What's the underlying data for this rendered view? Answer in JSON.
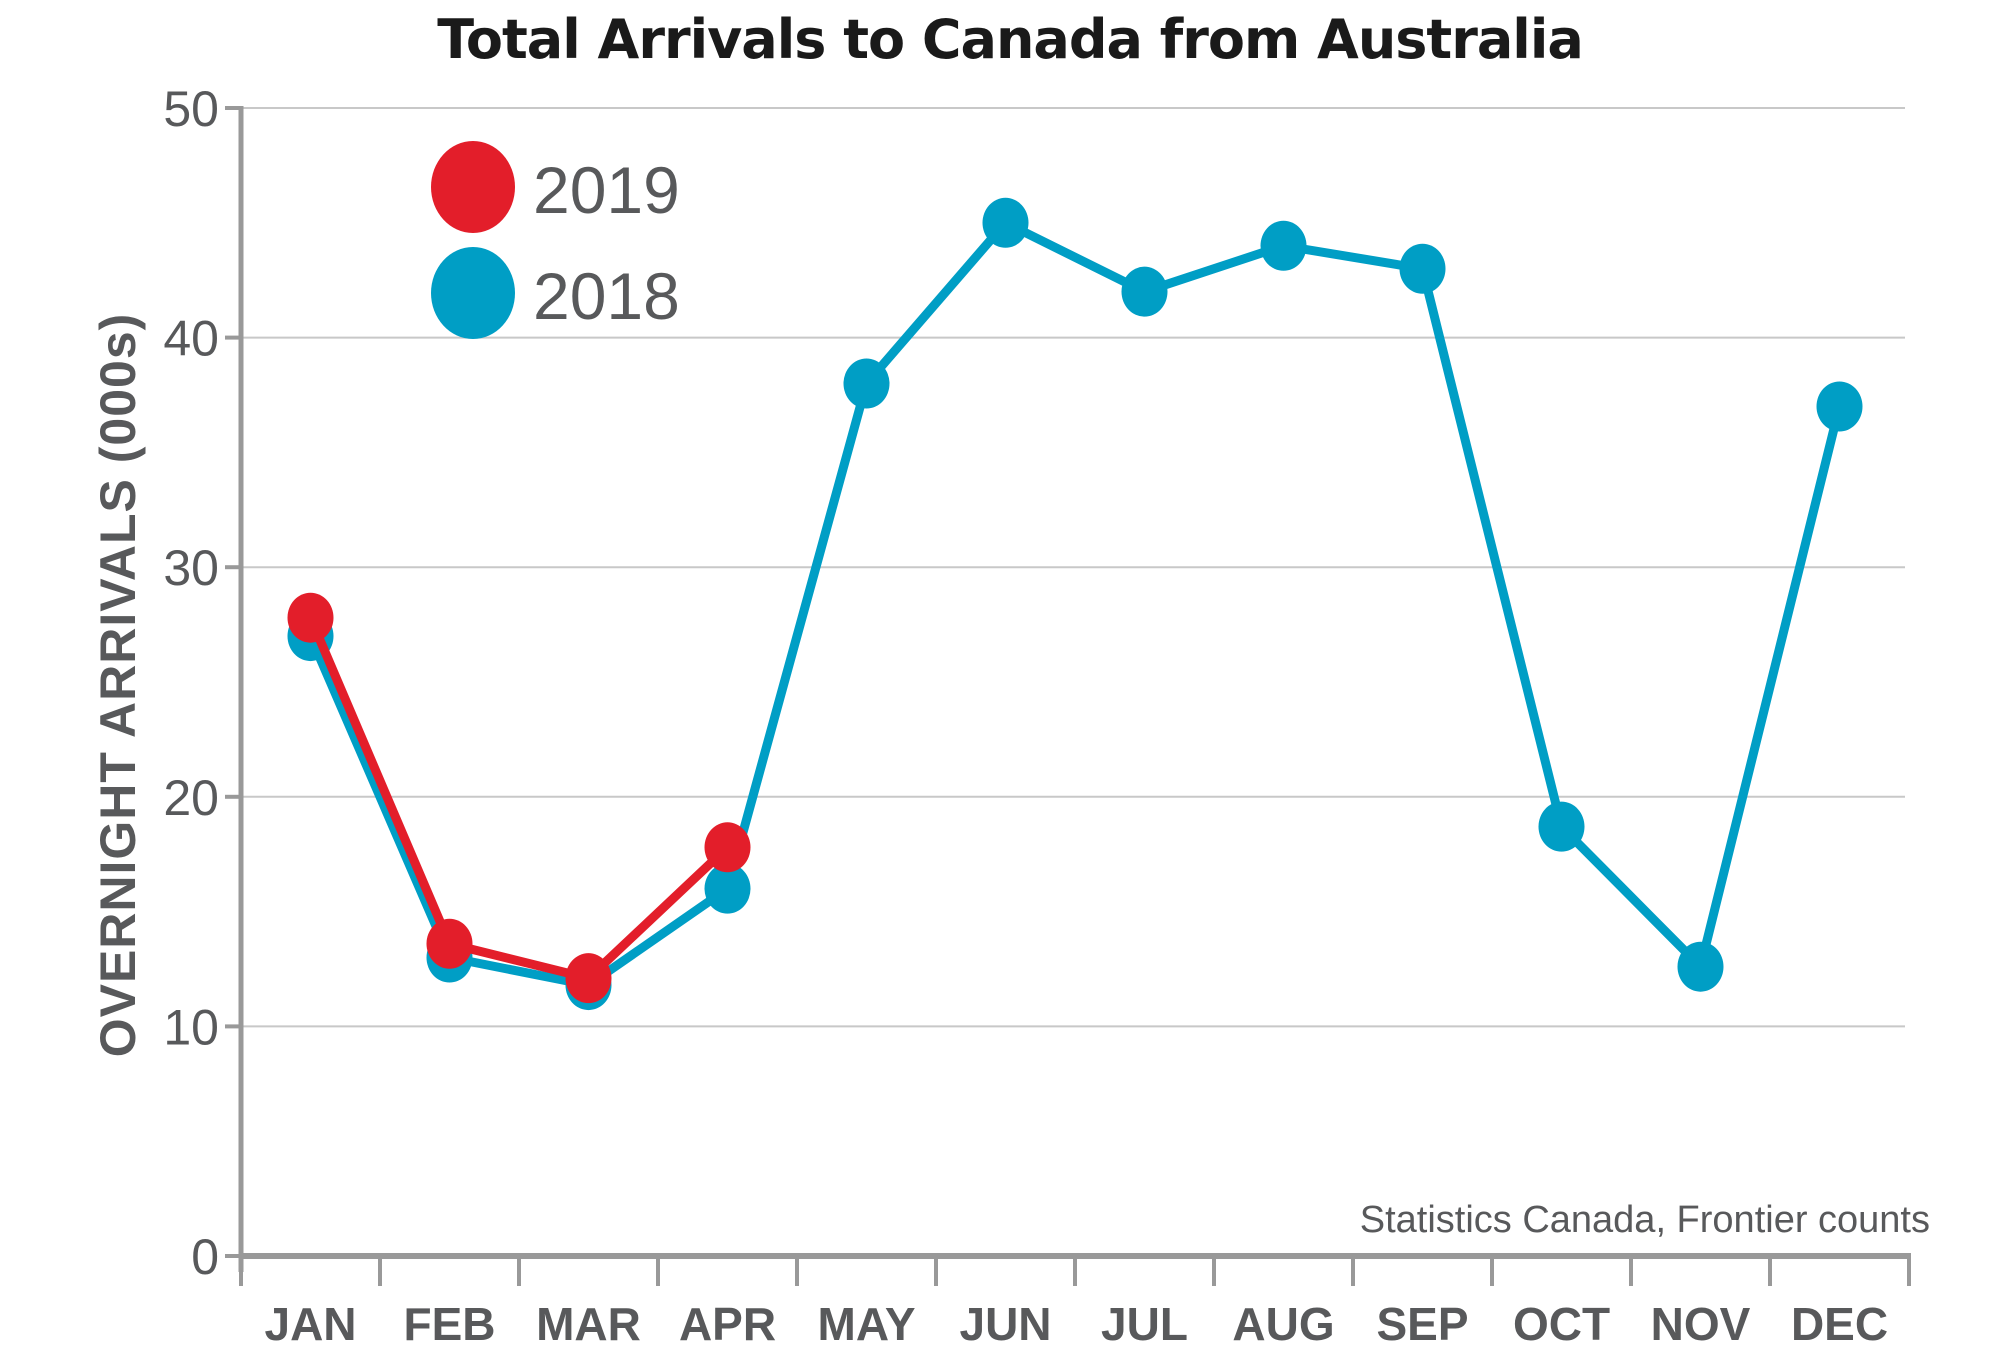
{
  "chart_data": {
    "type": "line",
    "title": "Total Arrivals to Canada from Australia",
    "xlabel": "",
    "ylabel": "OVERNIGHT ARRIVALS (000s)",
    "categories": [
      "JAN",
      "FEB",
      "MAR",
      "APR",
      "MAY",
      "JUN",
      "JUL",
      "AUG",
      "SEP",
      "OCT",
      "NOV",
      "DEC"
    ],
    "ylim": [
      0,
      50
    ],
    "yticks": [
      0,
      10,
      20,
      30,
      40,
      50
    ],
    "grid": true,
    "legend_position": "top-left",
    "series": [
      {
        "name": "2018",
        "color": "#009ec5",
        "values": [
          27,
          13,
          11.8,
          16,
          38,
          45,
          42,
          44,
          43,
          18.7,
          12.6,
          37
        ]
      },
      {
        "name": "2019",
        "color": "#e31e2a",
        "values": [
          27.8,
          13.6,
          12.1,
          17.8
        ]
      }
    ],
    "legend": [
      {
        "name": "2019",
        "color": "#e31e2a"
      },
      {
        "name": "2018",
        "color": "#009ec5"
      }
    ],
    "source": "Statistics Canada, Frontier counts"
  }
}
